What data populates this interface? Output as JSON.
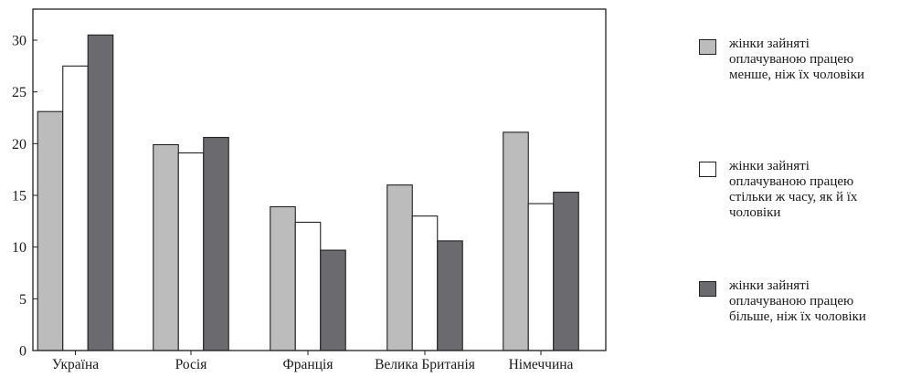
{
  "chart_data": {
    "type": "bar",
    "title": "",
    "xlabel": "",
    "ylabel": "",
    "categories": [
      "Україна",
      "Росія",
      "Франція",
      "Велика Британія",
      "Німеччина"
    ],
    "ylim": [
      0,
      33
    ],
    "yticks": [
      "0",
      "5",
      "10",
      "15",
      "20",
      "25",
      "30"
    ],
    "grid": false,
    "legend_position": "right",
    "series": [
      {
        "name": "жінки зайняті оплачуваною працею менше, ніж їх чоловіки",
        "values": [
          23.1,
          19.9,
          13.9,
          16.0,
          21.1
        ],
        "color": "#bcbcbc"
      },
      {
        "name": "жінки зайняті оплачуваною працею стільки ж часу, як й їх чоловіки",
        "values": [
          27.5,
          19.1,
          12.4,
          13.0,
          14.2
        ],
        "color": "#ffffff"
      },
      {
        "name": "жінки зайняті оплачуваною працею більше, ніж їх чоловіки",
        "values": [
          30.5,
          20.6,
          9.7,
          10.6,
          15.3
        ],
        "color": "#6b6b6f"
      }
    ]
  },
  "legend": {
    "items": [
      {
        "label": "жінки зайняті\nоплачуваною працею\nменше, ніж їх чоловіки",
        "color": "#bcbcbc"
      },
      {
        "label": "жінки зайняті\nоплачуваною працею\nстільки ж часу, як й їх\nчоловіки",
        "color": "#ffffff"
      },
      {
        "label": "жінки зайняті\nоплачуваною працею\nбільше, ніж їх чоловіки",
        "color": "#6b6b6f"
      }
    ]
  }
}
